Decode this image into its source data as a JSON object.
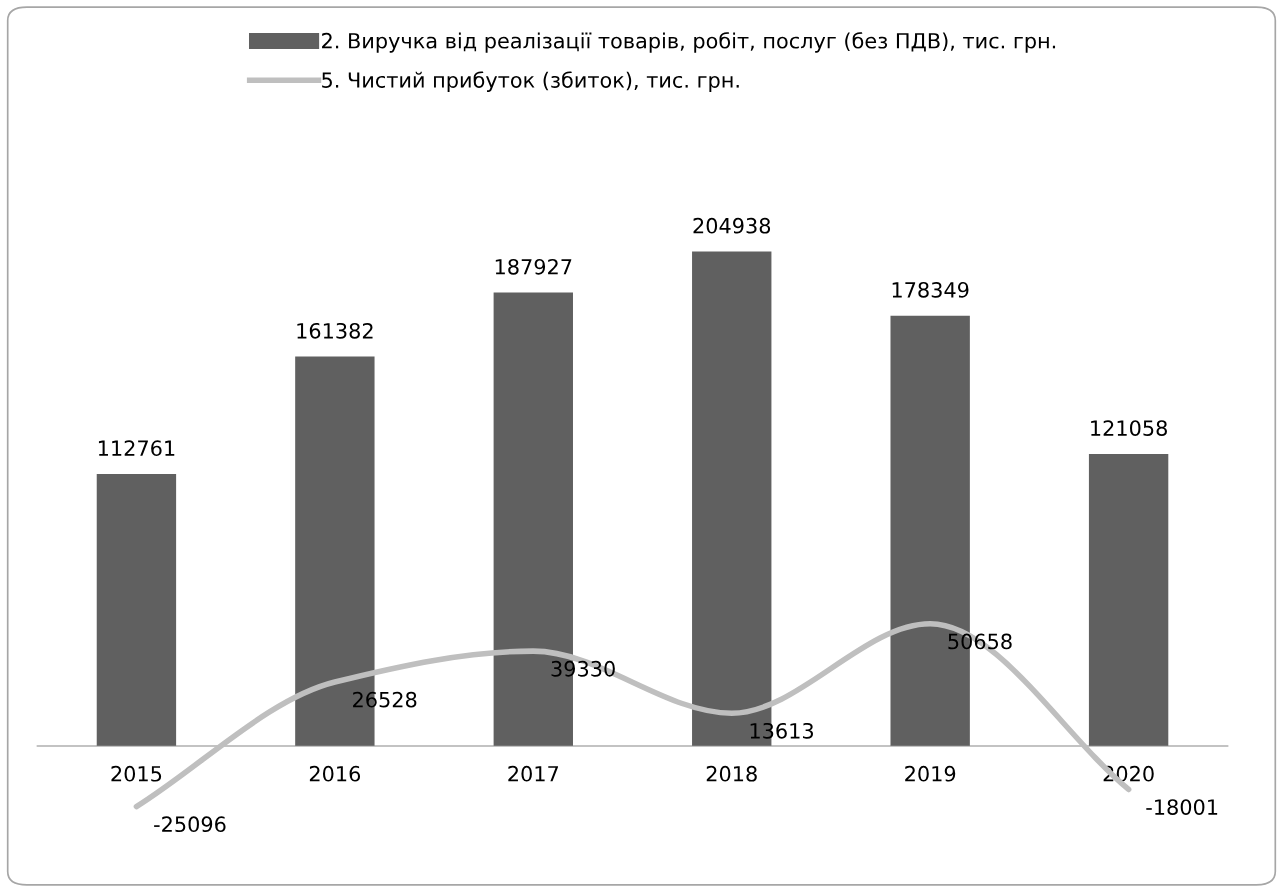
{
  "chart_data": {
    "type": "bar",
    "categories": [
      "2015",
      "2016",
      "2017",
      "2018",
      "2019",
      "2020"
    ],
    "series": [
      {
        "name": "2. Виручка від реалізації товарів, робіт, послуг (без ПДВ), тис. грн.",
        "color": "#606060",
        "values": [
          112761,
          161382,
          187927,
          204938,
          178349,
          121058
        ]
      },
      {
        "name": "5. Чистий прибуток (збиток), тис. грн.",
        "color": "#bfbfbf",
        "type": "line",
        "values": [
          -25096,
          26528,
          39330,
          13613,
          50658,
          -18001
        ]
      }
    ],
    "data_labels": true,
    "legend": "top",
    "grid": false,
    "marker": "none",
    "line_style": "solid"
  }
}
